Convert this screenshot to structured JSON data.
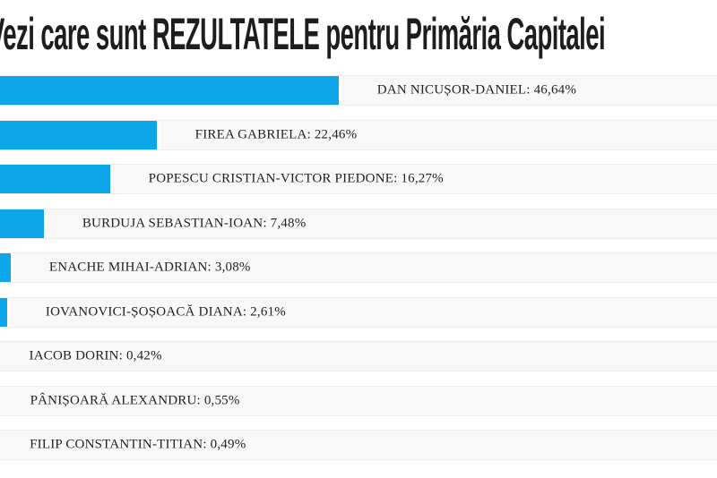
{
  "title": "Vezi care sunt REZULTATELE pentru Primăria Capitalei",
  "colors": {
    "bar": "#0da7e9",
    "track": "#f8f8f8",
    "track_border": "#ededed",
    "title_text": "#1d1d1d",
    "label_text": "#222222"
  },
  "chart_data": {
    "type": "bar",
    "orientation": "horizontal",
    "title": "Vezi care sunt REZULTATELE pentru Primăria Capitalei",
    "categories": [
      "DAN NICUȘOR-DANIEL",
      "FIREA GABRIELA",
      "POPESCU CRISTIAN-VICTOR PIEDONE",
      "BURDUJA SEBASTIAN-IOAN",
      "ENACHE MIHAI-ADRIAN",
      "IOVANOVICI-ȘOȘOACĂ DIANA",
      "IACOB DORIN",
      "PÂNIȘOARĂ ALEXANDRU",
      "FILIP CONSTANTIN-TITIAN"
    ],
    "values": [
      46.64,
      22.46,
      16.27,
      7.48,
      3.08,
      2.61,
      0.42,
      0.55,
      0.49
    ],
    "display_labels": [
      "DAN NICUȘOR-DANIEL: 46,64%",
      "FIREA GABRIELA: 22,46%",
      "POPESCU CRISTIAN-VICTOR PIEDONE: 16,27%",
      "BURDUJA SEBASTIAN-IOAN: 7,48%",
      "ENACHE MIHAI-ADRIAN: 3,08%",
      "IOVANOVICI-ȘOȘOACĂ DIANA: 2,61%",
      "IACOB DORIN: 0,42%",
      "PÂNIȘOARĂ ALEXANDRU: 0,55%",
      "FILIP CONSTANTIN-TITIAN: 0,49%"
    ],
    "xlabel": "",
    "ylabel": "",
    "xlim": [
      0,
      100
    ],
    "bar_color": "#0da7e9",
    "grid": false,
    "legend": "none"
  }
}
